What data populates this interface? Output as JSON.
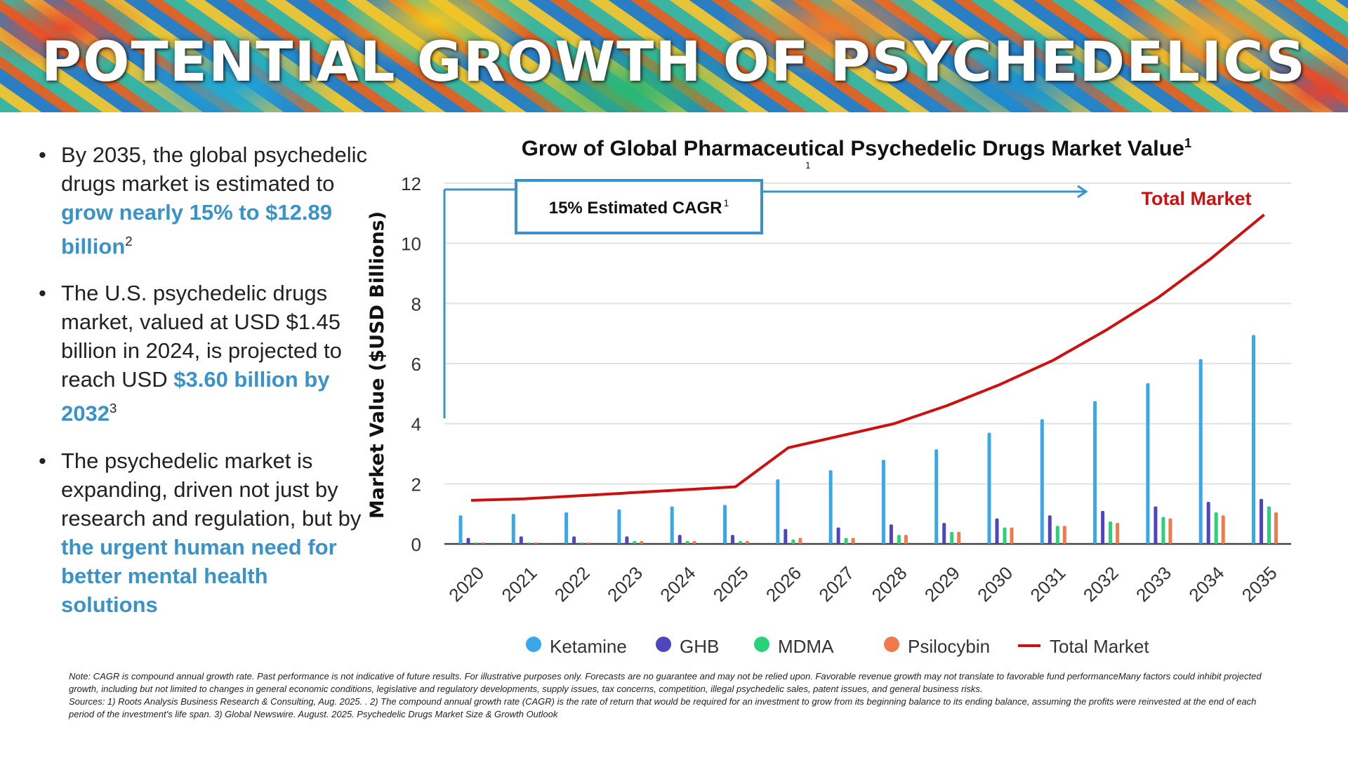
{
  "banner": {
    "title": "POTENTIAL GROWTH OF PSYCHEDELICS"
  },
  "bullets": [
    {
      "text": "By 2035, the global psychedelic drugs market is estimated to ",
      "highlight": "grow nearly 15% to $12.89 billion",
      "sup": "2",
      "after": ""
    },
    {
      "text": "The U.S. psychedelic drugs market, valued at USD $1.45 billion in 2024, is projected to reach USD ",
      "highlight": "$3.60 billion by 2032",
      "sup": "3",
      "after": ""
    },
    {
      "text": "The psychedelic market is expanding, driven not just by research and regulation, but by ",
      "highlight": "the urgent human need for better mental health solutions",
      "sup": "",
      "after": ""
    }
  ],
  "chart_data": {
    "type": "bar",
    "title": "Grow of Global Pharmaceutical Psychedelic Drugs Market Value",
    "title_sup": "1",
    "xlabel": "",
    "ylabel": "Market Value ($USD Billions)",
    "ylim": [
      0,
      12
    ],
    "yticks": [
      0,
      2,
      4,
      6,
      8,
      10,
      12
    ],
    "grid": true,
    "legend_position": "bottom",
    "categories": [
      "2020",
      "2021",
      "2022",
      "2023",
      "2024",
      "2025",
      "2026",
      "2027",
      "2028",
      "2029",
      "2030",
      "2031",
      "2032",
      "2033",
      "2034",
      "2035"
    ],
    "series": [
      {
        "name": "Ketamine",
        "type": "bar",
        "color": "#3aa8e8",
        "values": [
          0.95,
          1.0,
          1.05,
          1.15,
          1.25,
          1.3,
          2.15,
          2.45,
          2.8,
          3.15,
          3.7,
          4.15,
          4.75,
          5.35,
          6.15,
          6.95
        ]
      },
      {
        "name": "GHB",
        "type": "bar",
        "color": "#4f45bf",
        "values": [
          0.2,
          0.25,
          0.25,
          0.25,
          0.3,
          0.3,
          0.5,
          0.55,
          0.65,
          0.7,
          0.85,
          0.95,
          1.1,
          1.25,
          1.4,
          1.5
        ]
      },
      {
        "name": "MDMA",
        "type": "bar",
        "color": "#2bd27a",
        "values": [
          0.05,
          0.05,
          0.05,
          0.1,
          0.1,
          0.1,
          0.15,
          0.2,
          0.3,
          0.4,
          0.55,
          0.6,
          0.75,
          0.9,
          1.05,
          1.25
        ]
      },
      {
        "name": "Psilocybin",
        "type": "bar",
        "color": "#f07a4a",
        "values": [
          0.05,
          0.05,
          0.05,
          0.1,
          0.1,
          0.1,
          0.2,
          0.2,
          0.3,
          0.4,
          0.55,
          0.6,
          0.7,
          0.85,
          0.95,
          1.05
        ]
      },
      {
        "name": "Total Market",
        "type": "line",
        "color": "#cc1111",
        "values": [
          1.45,
          1.5,
          1.6,
          1.7,
          1.8,
          1.9,
          3.2,
          3.6,
          4.0,
          4.6,
          5.3,
          6.1,
          7.1,
          8.2,
          9.5,
          10.95
        ]
      }
    ],
    "annotations": {
      "cagr_label": "15% Estimated CAGR",
      "cagr_sup": "1",
      "total_label": "Total Market",
      "stray_mark": "1"
    }
  },
  "footnote": {
    "note": "Note: CAGR is compound annual growth rate. Past performance is not indicative of future results. For illustrative purposes only. Forecasts are no guarantee and may not be relied upon. Favorable revenue growth may not translate to favorable fund performanceMany factors could inhibit projected growth, including but not limited to changes in general economic conditions, legislative and regulatory developments, supply issues, tax concerns, competition, illegal psychedelic sales, patent issues, and general business risks.",
    "sources": "Sources: 1) Roots Analysis Business Research & Consulting, Aug. 2025. . 2) The compound annual growth rate (CAGR) is the rate of return that would be required for an investment to grow from its beginning balance to its ending balance, assuming the profits were reinvested at the end of each period of the investment's life span. 3) Global Newswire. August. 2025. Psychedelic Drugs Market Size & Growth Outlook"
  }
}
